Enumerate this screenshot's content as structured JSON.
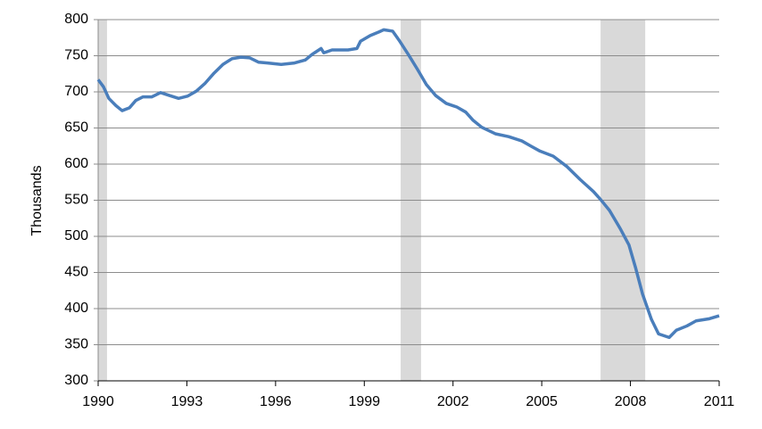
{
  "chart_data": {
    "type": "line",
    "y_label": "Thousands",
    "x": [
      1990.0,
      1990.18,
      1990.36,
      1990.6,
      1990.81,
      1991.06,
      1991.27,
      1991.51,
      1991.81,
      1992.11,
      1992.41,
      1992.72,
      1993.02,
      1993.32,
      1993.62,
      1993.92,
      1994.22,
      1994.53,
      1994.83,
      1995.13,
      1995.43,
      1995.73,
      1996.19,
      1996.64,
      1997.0,
      1997.24,
      1997.54,
      1997.63,
      1997.91,
      1998.45,
      1998.75,
      1998.87,
      1999.2,
      1999.5,
      1999.66,
      1999.96,
      2000.2,
      2000.5,
      2000.8,
      2001.1,
      2001.41,
      2001.77,
      2002.13,
      2002.43,
      2002.67,
      2002.97,
      2003.43,
      2003.88,
      2004.33,
      2004.63,
      2004.94,
      2005.39,
      2005.84,
      2006.29,
      2006.75,
      2006.99,
      2007.29,
      2007.65,
      2007.95,
      2008.17,
      2008.41,
      2008.71,
      2008.95,
      2009.31,
      2009.55,
      2009.91,
      2010.22,
      2010.67,
      2011.0
    ],
    "series": [
      {
        "color": "#4a7ebb",
        "values": [
          717,
          707,
          691,
          681,
          674,
          678,
          688,
          693,
          693,
          699,
          695,
          691,
          694,
          701,
          712,
          726,
          738,
          746,
          748,
          747,
          741,
          740,
          738,
          740,
          744,
          752,
          760,
          754,
          758,
          758,
          760,
          770,
          778,
          783,
          786,
          784,
          770,
          751,
          731,
          710,
          695,
          684,
          679,
          672,
          661,
          651,
          642,
          638,
          632,
          625,
          618,
          611,
          597,
          579,
          562,
          551,
          536,
          511,
          488,
          457,
          420,
          385,
          365,
          360,
          370,
          376,
          383,
          386,
          390
        ]
      }
    ],
    "shaded_regions": [
      [
        1990.0,
        1990.3
      ],
      [
        2000.23,
        2000.92
      ],
      [
        2006.99,
        2008.5
      ]
    ],
    "shade_color": "#d9d9d9",
    "xlim": [
      1990,
      2011
    ],
    "xticks": [
      1990,
      1993,
      1996,
      1999,
      2002,
      2005,
      2008,
      2011
    ],
    "ylim": [
      300,
      800
    ],
    "yticks": [
      300,
      350,
      400,
      450,
      500,
      550,
      600,
      650,
      700,
      750,
      800
    ],
    "grid": true
  }
}
